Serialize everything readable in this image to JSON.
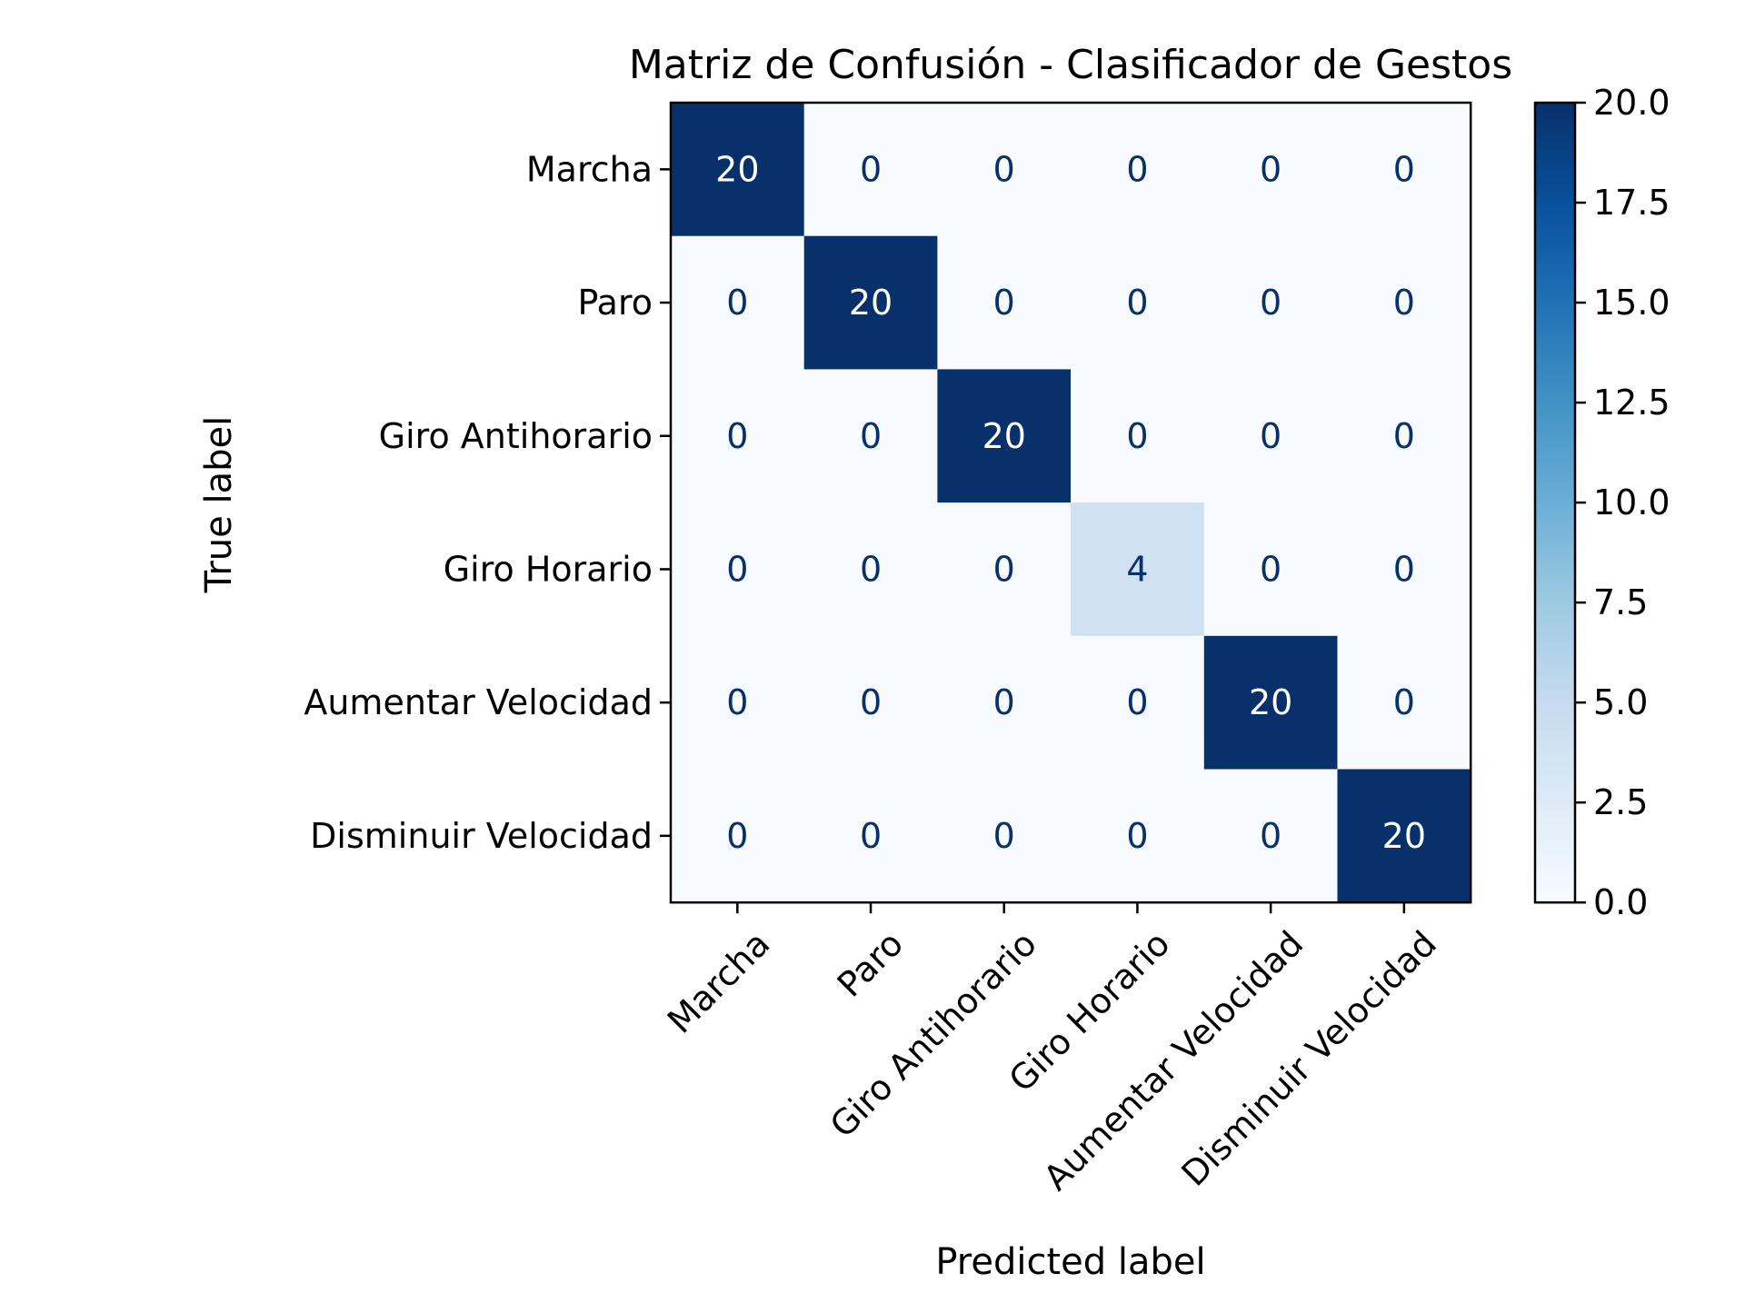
{
  "chart_data": {
    "type": "heatmap",
    "title": "Matriz de Confusión - Clasificador de Gestos",
    "xlabel": "Predicted label",
    "ylabel": "True label",
    "classes": [
      "Marcha",
      "Paro",
      "Giro Antihorario",
      "Giro Horario",
      "Aumentar Velocidad",
      "Disminuir Velocidad"
    ],
    "matrix": [
      [
        20,
        0,
        0,
        0,
        0,
        0
      ],
      [
        0,
        20,
        0,
        0,
        0,
        0
      ],
      [
        0,
        0,
        20,
        0,
        0,
        0
      ],
      [
        0,
        0,
        0,
        4,
        0,
        0
      ],
      [
        0,
        0,
        0,
        0,
        20,
        0
      ],
      [
        0,
        0,
        0,
        0,
        0,
        20
      ]
    ],
    "colormap": "Blues",
    "colorbar": {
      "range": [
        0,
        20
      ],
      "ticks": [
        "0.0",
        "2.5",
        "5.0",
        "7.5",
        "10.0",
        "12.5",
        "15.0",
        "17.5",
        "20.0"
      ]
    },
    "colors": {
      "low": "#f7fbff",
      "high": "#08306b",
      "text_on_dark": "#ffffff",
      "text_on_light": "#08306b"
    }
  }
}
